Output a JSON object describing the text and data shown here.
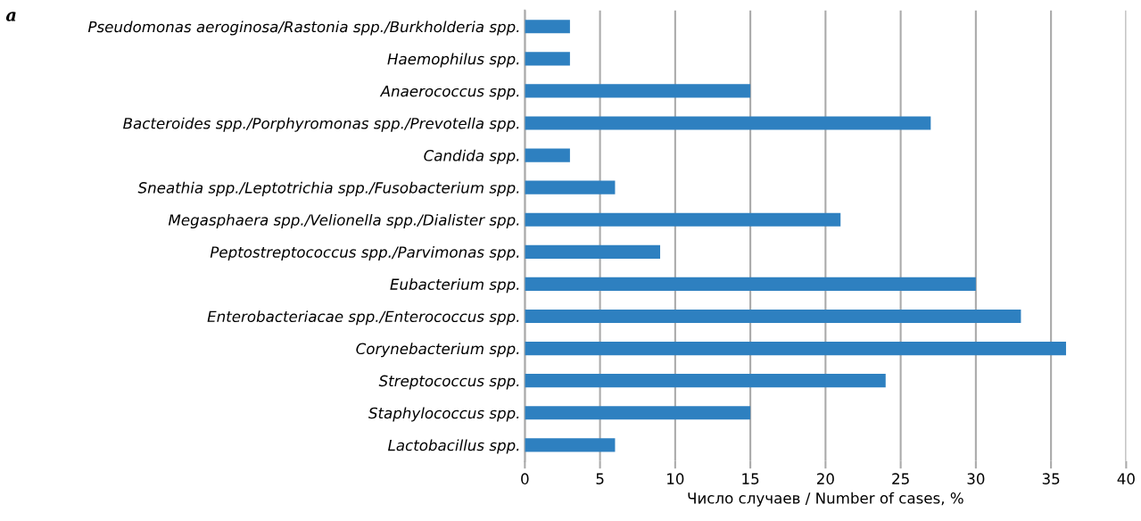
{
  "chart_data": {
    "type": "bar",
    "orientation": "horizontal",
    "categories": [
      "Pseudomonas aeroginosa/Rastonia spp./Burkholderia spp.",
      "Haemophilus spp.",
      "Anaerococcus spp.",
      "Bacteroides spp./Porphyromonas spp./Prevotella spp.",
      "Candida spp.",
      "Sneathia spp./Leptotrichia spp./Fusobacterium spp.",
      "Megasphaera spp./Velionella spp./Dialister spp.",
      "Peptostreptococcus spp./Parvimonas spp.",
      "Eubacterium spp.",
      "Enterobacteriacae spp./Enterococcus spp.",
      "Corynebacterium spp.",
      "Streptococcus spp.",
      "Staphylococcus spp.",
      "Lactobacillus spp."
    ],
    "values": [
      3,
      3,
      15,
      27,
      3,
      6,
      21,
      9,
      30,
      33,
      36,
      24,
      15,
      6
    ],
    "color": "#2e80c0",
    "xlim": [
      0,
      40
    ],
    "xticks": [
      0,
      5,
      10,
      15,
      20,
      25,
      30,
      35,
      40
    ],
    "xlabel": "Число случаев / Number of cases, %",
    "grid": "x",
    "legend": false,
    "annotations": [
      "a"
    ]
  }
}
